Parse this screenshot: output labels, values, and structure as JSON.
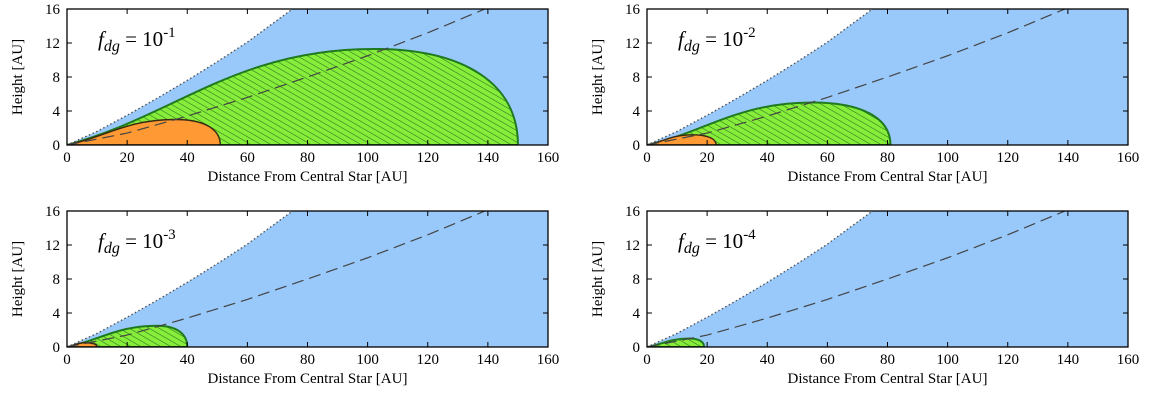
{
  "figure": {
    "colors": {
      "disk": "#99c9fb",
      "green_region": "#86ee3a",
      "green_hatch": "#2e6b1e",
      "green_border": "#1f7a1f",
      "orange_region": "#ff9933",
      "orange_border": "#3a2a10",
      "dotted_surface": "#555555",
      "dashed_line": "#444444",
      "frame": "#000000"
    }
  },
  "chart_data": [
    {
      "type": "area",
      "annotation": {
        "prefix": "f",
        "sub": "dg",
        "equals": " = 10",
        "exponent": "-1"
      },
      "xlabel": "Distance From Central Star [AU]",
      "ylabel": "Height [AU]",
      "xlim": [
        0,
        160
      ],
      "ylim": [
        0,
        16
      ],
      "xticks": [
        0,
        20,
        40,
        60,
        80,
        100,
        120,
        140,
        160
      ],
      "yticks": [
        0,
        4,
        8,
        12,
        16
      ],
      "disk_surface": {
        "x": [
          0,
          10,
          20,
          30,
          40,
          50,
          60,
          70,
          75
        ],
        "y": [
          0,
          1.6,
          3.5,
          5.5,
          7.6,
          9.8,
          12.1,
          14.7,
          16
        ]
      },
      "scale_height": {
        "x": [
          0,
          20,
          40,
          60,
          80,
          100,
          120,
          139
        ],
        "y": [
          0,
          1.4,
          3.4,
          5.6,
          8.0,
          10.5,
          13.2,
          16
        ]
      },
      "green_region": {
        "x_max": 150,
        "peak_x": 102,
        "peak_y": 11.3
      },
      "orange_region": {
        "x_max": 51,
        "peak_x": 36,
        "peak_y": 3.0
      }
    },
    {
      "type": "area",
      "annotation": {
        "prefix": "f",
        "sub": "dg",
        "equals": " = 10",
        "exponent": "-2"
      },
      "xlabel": "Distance From Central Star [AU]",
      "ylabel": "Height [AU]",
      "xlim": [
        0,
        160
      ],
      "ylim": [
        0,
        16
      ],
      "xticks": [
        0,
        20,
        40,
        60,
        80,
        100,
        120,
        140,
        160
      ],
      "yticks": [
        0,
        4,
        8,
        12,
        16
      ],
      "disk_surface": {
        "x": [
          0,
          10,
          20,
          30,
          40,
          50,
          60,
          70,
          75
        ],
        "y": [
          0,
          1.6,
          3.5,
          5.5,
          7.6,
          9.8,
          12.1,
          14.7,
          16
        ]
      },
      "scale_height": {
        "x": [
          0,
          20,
          40,
          60,
          80,
          100,
          120,
          139
        ],
        "y": [
          0,
          1.4,
          3.4,
          5.6,
          8.0,
          10.5,
          13.2,
          16
        ]
      },
      "green_region": {
        "x_max": 81,
        "peak_x": 55,
        "peak_y": 5.0
      },
      "orange_region": {
        "x_max": 23,
        "peak_x": 15,
        "peak_y": 1.2
      }
    },
    {
      "type": "area",
      "annotation": {
        "prefix": "f",
        "sub": "dg",
        "equals": " = 10",
        "exponent": "-3"
      },
      "xlabel": "Distance From Central Star [AU]",
      "ylabel": "Height [AU]",
      "xlim": [
        0,
        160
      ],
      "ylim": [
        0,
        16
      ],
      "xticks": [
        0,
        20,
        40,
        60,
        80,
        100,
        120,
        140,
        160
      ],
      "yticks": [
        0,
        4,
        8,
        12,
        16
      ],
      "disk_surface": {
        "x": [
          0,
          10,
          20,
          30,
          40,
          50,
          60,
          70,
          75
        ],
        "y": [
          0,
          1.6,
          3.5,
          5.5,
          7.6,
          9.8,
          12.1,
          14.7,
          16
        ]
      },
      "scale_height": {
        "x": [
          0,
          20,
          40,
          60,
          80,
          100,
          120,
          139
        ],
        "y": [
          0,
          1.4,
          3.4,
          5.6,
          8.0,
          10.5,
          13.2,
          16
        ]
      },
      "green_region": {
        "x_max": 40,
        "peak_x": 30,
        "peak_y": 2.5
      },
      "orange_region": {
        "x_max": 10,
        "peak_x": 6,
        "peak_y": 0.5
      }
    },
    {
      "type": "area",
      "annotation": {
        "prefix": "f",
        "sub": "dg",
        "equals": " = 10",
        "exponent": "-4"
      },
      "xlabel": "Distance From Central Star [AU]",
      "ylabel": "Height [AU]",
      "xlim": [
        0,
        160
      ],
      "ylim": [
        0,
        16
      ],
      "xticks": [
        0,
        20,
        40,
        60,
        80,
        100,
        120,
        140,
        160
      ],
      "yticks": [
        0,
        4,
        8,
        12,
        16
      ],
      "disk_surface": {
        "x": [
          0,
          10,
          20,
          30,
          40,
          50,
          60,
          70,
          75
        ],
        "y": [
          0,
          1.6,
          3.5,
          5.5,
          7.6,
          9.8,
          12.1,
          14.7,
          16
        ]
      },
      "scale_height": {
        "x": [
          0,
          20,
          40,
          60,
          80,
          100,
          120,
          139
        ],
        "y": [
          0,
          1.4,
          3.4,
          5.6,
          8.0,
          10.5,
          13.2,
          16
        ]
      },
      "green_region": {
        "x_max": 19,
        "peak_x": 14,
        "peak_y": 1.0
      },
      "orange_region": null
    }
  ]
}
